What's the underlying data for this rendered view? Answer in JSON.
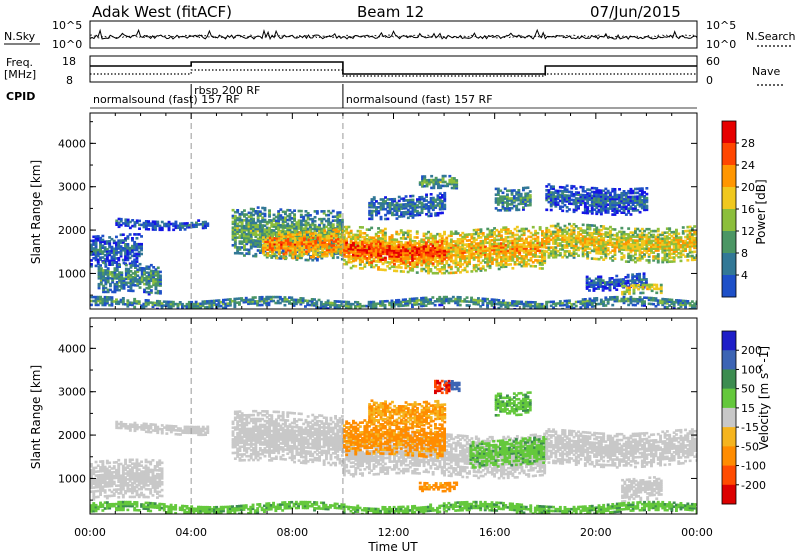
{
  "header": {
    "station": "Adak West (fitACF)",
    "beam": "Beam 12",
    "date": "07/Jun/2015"
  },
  "noise_panel": {
    "left_label": "N.Sky",
    "left_ticks": [
      "10^5",
      "10^0"
    ],
    "right_ticks": [
      "10^5",
      "10^0"
    ],
    "right_label": "N.Search"
  },
  "freq_panel": {
    "left_label_line1": "Freq.",
    "left_label_line2": "[MHz]",
    "left_ticks": [
      "18",
      "8"
    ],
    "right_ticks": [
      "60",
      "0"
    ],
    "right_label": "Nave"
  },
  "cpid": {
    "label": "CPID",
    "segments": [
      {
        "label": "normalsound (fast) 157 RF",
        "start_hour": 0,
        "end_hour": 4
      },
      {
        "label": "rbsp 200 RF",
        "start_hour": 4,
        "end_hour": 10
      },
      {
        "label": "normalsound (fast) 157 RF",
        "start_hour": 10,
        "end_hour": 24
      }
    ],
    "overlap_label": "157 RF"
  },
  "colors": {
    "power_scale": [
      "#1414e6",
      "#1e50c8",
      "#327896",
      "#4b9664",
      "#8cbe3c",
      "#f0c81e",
      "#ff9600",
      "#ff4600",
      "#e60000"
    ],
    "velocity_scale": [
      "#1e1ec8",
      "#3c64b4",
      "#3c8c50",
      "#64c83c",
      "#c8c8c8",
      "#f5b41e",
      "#ff8c00",
      "#ff4b00",
      "#dc0000"
    ]
  },
  "chart_data": [
    {
      "type": "heatmap",
      "title": "Power",
      "ylabel": "Slant Range [km]",
      "xlabel": "",
      "x_range_hours": [
        0,
        24
      ],
      "ylim": [
        180,
        4700
      ],
      "y_ticks": [
        "1000",
        "2000",
        "3000",
        "4000"
      ],
      "colorbar_label": "Power [dB]",
      "colorbar_ticks": [
        "28",
        "24",
        "20",
        "16",
        "12",
        "8",
        "4"
      ],
      "colorbar_range": [
        0,
        32
      ],
      "bands": [
        {
          "x": [
            0.0,
            2.0
          ],
          "range": [
            1150,
            1850
          ],
          "value": 8
        },
        {
          "x": [
            0.3,
            2.8
          ],
          "range": [
            500,
            1200
          ],
          "value": 12
        },
        {
          "x": [
            1.0,
            4.6
          ],
          "range": [
            2050,
            2250
          ],
          "value": 8
        },
        {
          "x": [
            5.6,
            10.0
          ],
          "range": [
            1350,
            2500
          ],
          "value": 14
        },
        {
          "x": [
            6.8,
            10.0
          ],
          "range": [
            1400,
            2000
          ],
          "value": 24
        },
        {
          "x": [
            10.0,
            18.0
          ],
          "range": [
            1050,
            2000
          ],
          "value": 22
        },
        {
          "x": [
            10.0,
            14.0
          ],
          "range": [
            1250,
            1750
          ],
          "value": 28
        },
        {
          "x": [
            11.0,
            14.0
          ],
          "range": [
            2300,
            2800
          ],
          "value": 10
        },
        {
          "x": [
            13.0,
            14.5
          ],
          "range": [
            2900,
            3200
          ],
          "value": 14
        },
        {
          "x": [
            16.0,
            17.4
          ],
          "range": [
            2500,
            3000
          ],
          "value": 12
        },
        {
          "x": [
            18.0,
            24.0
          ],
          "range": [
            1300,
            2100
          ],
          "value": 20
        },
        {
          "x": [
            18.0,
            22.0
          ],
          "range": [
            2400,
            3000
          ],
          "value": 8
        },
        {
          "x": [
            19.6,
            22.0
          ],
          "range": [
            650,
            1000
          ],
          "value": 8
        },
        {
          "x": [
            21.0,
            22.6
          ],
          "range": [
            480,
            700
          ],
          "value": 20
        },
        {
          "x": [
            0.0,
            24.0
          ],
          "range": [
            200,
            420
          ],
          "value": 12
        }
      ]
    },
    {
      "type": "heatmap",
      "title": "Velocity",
      "ylabel": "Slant Range [km]",
      "xlabel": "Time UT",
      "x_ticks": [
        "00:00",
        "04:00",
        "08:00",
        "12:00",
        "16:00",
        "20:00",
        "00:00"
      ],
      "x_range_hours": [
        0,
        24
      ],
      "ylim": [
        180,
        4700
      ],
      "y_ticks": [
        "1000",
        "2000",
        "3000",
        "4000"
      ],
      "colorbar_label": "Velocity [m s^-1]",
      "colorbar_ticks": [
        "200",
        "100",
        "50",
        "15",
        "-15",
        "-50",
        "-100",
        "-200"
      ],
      "bands": [
        {
          "x": [
            0.0,
            2.8
          ],
          "range": [
            500,
            1400
          ],
          "value": 0
        },
        {
          "x": [
            1.0,
            4.6
          ],
          "range": [
            2050,
            2250
          ],
          "value": 0
        },
        {
          "x": [
            5.6,
            10.0
          ],
          "range": [
            1350,
            2500
          ],
          "value": 0
        },
        {
          "x": [
            10.0,
            18.0
          ],
          "range": [
            1050,
            2000
          ],
          "value": 0
        },
        {
          "x": [
            10.0,
            14.0
          ],
          "range": [
            1500,
            2300
          ],
          "value": -60
        },
        {
          "x": [
            13.0,
            14.5
          ],
          "range": [
            750,
            950
          ],
          "value": -60
        },
        {
          "x": [
            11.0,
            14.0
          ],
          "range": [
            2300,
            2800
          ],
          "value": -50
        },
        {
          "x": [
            14.0,
            14.6
          ],
          "range": [
            2950,
            3200
          ],
          "value": 180
        },
        {
          "x": [
            13.6,
            14.2
          ],
          "range": [
            2900,
            3200
          ],
          "value": -200
        },
        {
          "x": [
            16.0,
            17.4
          ],
          "range": [
            2500,
            3000
          ],
          "value": 40
        },
        {
          "x": [
            15.0,
            18.0
          ],
          "range": [
            1300,
            1900
          ],
          "value": 40
        },
        {
          "x": [
            18.0,
            24.0
          ],
          "range": [
            1300,
            2100
          ],
          "value": 0
        },
        {
          "x": [
            21.0,
            22.6
          ],
          "range": [
            480,
            1000
          ],
          "value": 0
        },
        {
          "x": [
            0.0,
            24.0
          ],
          "range": [
            200,
            420
          ],
          "value": 40
        }
      ]
    }
  ]
}
